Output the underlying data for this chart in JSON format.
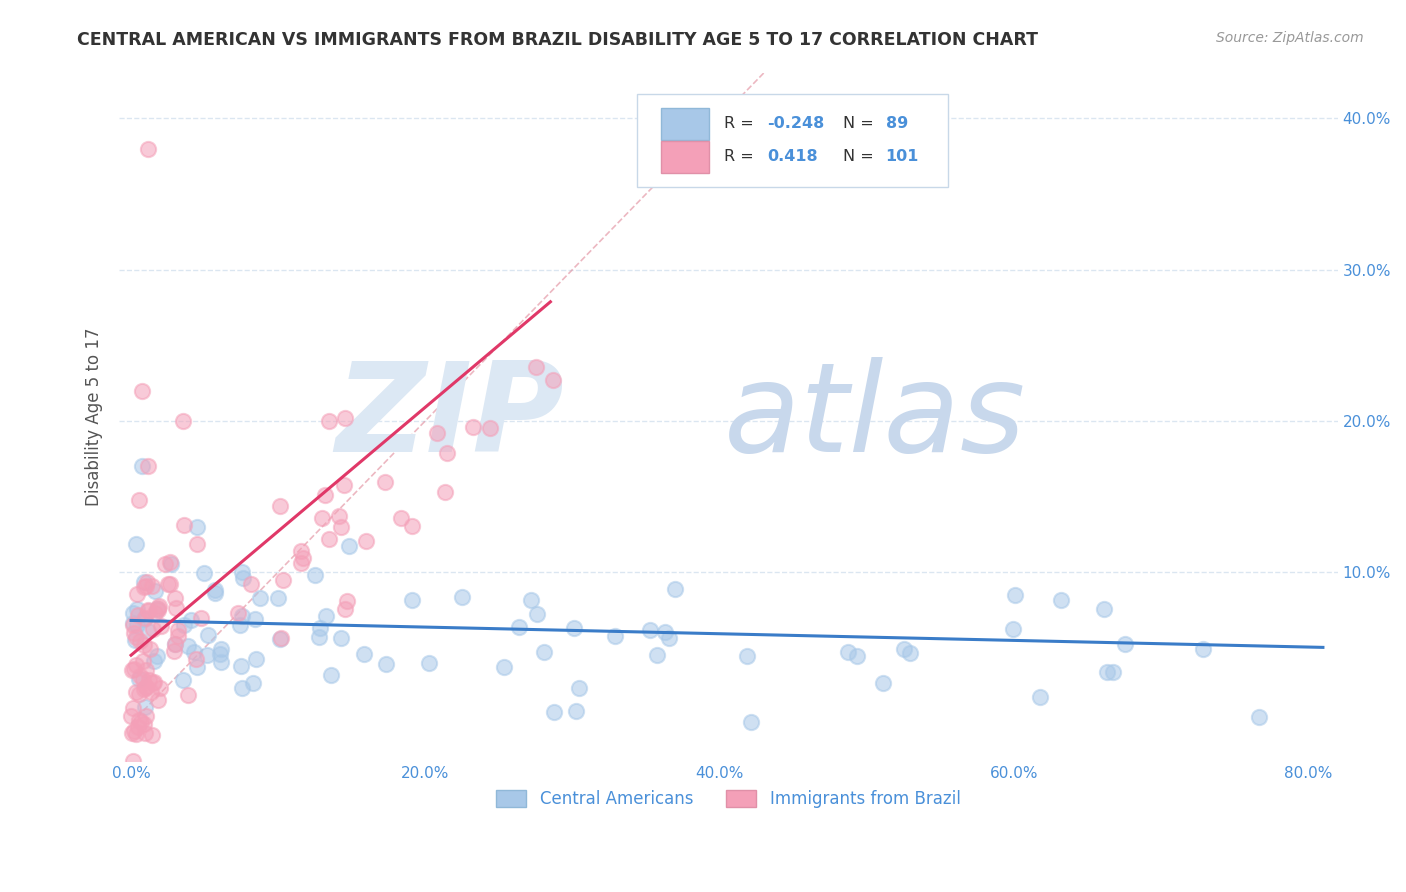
{
  "title": "CENTRAL AMERICAN VS IMMIGRANTS FROM BRAZIL DISABILITY AGE 5 TO 17 CORRELATION CHART",
  "source": "Source: ZipAtlas.com",
  "ylabel": "Disability Age 5 to 17",
  "xlim": [
    -0.008,
    0.82
  ],
  "ylim": [
    -0.025,
    0.43
  ],
  "legend_R_blue": "-0.248",
  "legend_N_blue": "89",
  "legend_R_pink": "0.418",
  "legend_N_pink": "101",
  "blue_dot_color": "#a8c8e8",
  "pink_dot_color": "#f4a0b8",
  "blue_line_color": "#3a7cc8",
  "pink_line_color": "#e03868",
  "diag_line_color": "#e08898",
  "title_color": "#333333",
  "source_color": "#999999",
  "axis_color": "#4a90d9",
  "legend_text_dark": "#333333",
  "background_color": "#ffffff",
  "grid_color": "#d8e4f0",
  "watermark_zip_color": "#dce8f4",
  "watermark_atlas_color": "#c8d8ec"
}
